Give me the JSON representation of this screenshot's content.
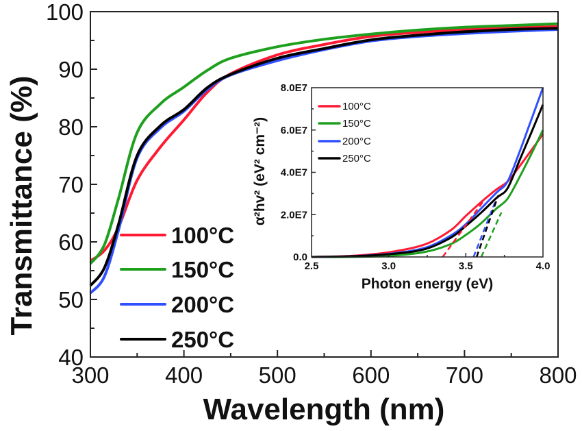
{
  "chart_data": [
    {
      "type": "line",
      "title": "",
      "xlabel": "Wavelength (nm)",
      "ylabel": "Transmittance (%)",
      "xlim": [
        300,
        800
      ],
      "ylim": [
        40,
        100
      ],
      "xticks": [
        300,
        400,
        500,
        600,
        700,
        800
      ],
      "xtick_labels": [
        "300",
        "400",
        "500",
        "600",
        "700",
        "800"
      ],
      "yticks": [
        40,
        50,
        60,
        70,
        80,
        90,
        100
      ],
      "ytick_labels": [
        "40",
        "50",
        "60",
        "70",
        "80",
        "90",
        "100"
      ],
      "grid": false,
      "legend_position": "bottom-left",
      "x": [
        300,
        315,
        330,
        350,
        375,
        400,
        425,
        450,
        500,
        550,
        600,
        650,
        700,
        750,
        800
      ],
      "series": [
        {
          "name": "100°C",
          "color": "#ff1a33",
          "values": [
            56.7,
            58.5,
            62.5,
            70.7,
            76.5,
            81.2,
            86.0,
            89.2,
            92.5,
            94.3,
            95.7,
            96.4,
            96.9,
            97.2,
            97.4
          ]
        },
        {
          "name": "150°C",
          "color": "#1ea01e",
          "values": [
            56.2,
            59.5,
            67.5,
            79.0,
            84.0,
            86.9,
            89.8,
            91.9,
            93.9,
            95.2,
            96.1,
            96.8,
            97.3,
            97.6,
            97.9
          ]
        },
        {
          "name": "200°C",
          "color": "#3050ff",
          "values": [
            51.1,
            54.0,
            62.0,
            74.6,
            79.8,
            82.7,
            86.5,
            89.0,
            91.5,
            93.4,
            94.9,
            95.7,
            96.2,
            96.6,
            96.9
          ]
        },
        {
          "name": "250°C",
          "color": "#000000",
          "values": [
            52.4,
            55.5,
            63.0,
            75.0,
            80.2,
            83.0,
            86.8,
            89.1,
            91.9,
            93.6,
            95.1,
            95.9,
            96.5,
            96.9,
            97.1
          ]
        }
      ]
    },
    {
      "type": "line",
      "title": "",
      "xlabel": "Photon energy (eV)",
      "ylabel": "α²hv² (eV² cm⁻²)",
      "xlim": [
        2.5,
        4.0
      ],
      "ylim": [
        0,
        80000000.0
      ],
      "xticks": [
        2.5,
        3.0,
        3.5,
        4.0
      ],
      "xtick_labels": [
        "2.5",
        "3.0",
        "3.5",
        "4.0"
      ],
      "yticks": [
        0,
        20000000.0,
        40000000.0,
        60000000.0,
        80000000.0
      ],
      "ytick_labels": [
        "0.0",
        "2.0E7",
        "4.0E7",
        "6.0E7",
        "8.0E7"
      ],
      "grid": false,
      "legend_position": "top-left",
      "x": [
        2.5,
        2.75,
        3.0,
        3.23,
        3.4,
        3.5,
        3.6,
        3.7,
        3.77,
        3.85,
        3.92,
        4.0
      ],
      "series": [
        {
          "name": "100°C",
          "color": "#ff1a33",
          "values": [
            0.0,
            500000.0,
            2200000.0,
            5800000.0,
            12500000.0,
            19400000.0,
            26000000.0,
            32000000.0,
            35600000.0,
            43000000.0,
            50000000.0,
            58000000.0
          ]
        },
        {
          "name": "150°C",
          "color": "#1ea01e",
          "values": [
            0.0,
            0.0,
            500000.0,
            2300000.0,
            6000000.0,
            10400000.0,
            16000000.0,
            23000000.0,
            27500000.0,
            38000000.0,
            48000000.0,
            60000000.0
          ]
        },
        {
          "name": "200°C",
          "color": "#3050ff",
          "values": [
            0.0,
            300000.0,
            1500000.0,
            4200000.0,
            10000000.0,
            15500000.0,
            23000000.0,
            30500000.0,
            35600000.0,
            50000000.0,
            64000000.0,
            80000000.0
          ]
        },
        {
          "name": "250°C",
          "color": "#000000",
          "values": [
            0.0,
            300000.0,
            1300000.0,
            3600000.0,
            9000000.0,
            14600000.0,
            21000000.0,
            28000000.0,
            32400000.0,
            46000000.0,
            58000000.0,
            72000000.0
          ]
        }
      ],
      "tangent_lines": [
        {
          "name": "100°C",
          "color": "#ff1a33",
          "x": [
            3.35,
            3.62
          ],
          "values": [
            0.0,
            27000000.0
          ]
        },
        {
          "name": "150°C",
          "color": "#1ea01e",
          "x": [
            3.6,
            3.73
          ],
          "values": [
            0.0,
            21000000.0
          ]
        },
        {
          "name": "200°C",
          "color": "#3050ff",
          "x": [
            3.55,
            3.69
          ],
          "values": [
            0.0,
            26000000.0
          ]
        },
        {
          "name": "250°C",
          "color": "#000000",
          "x": [
            3.57,
            3.71
          ],
          "values": [
            0.0,
            29000000.0
          ]
        }
      ]
    }
  ]
}
